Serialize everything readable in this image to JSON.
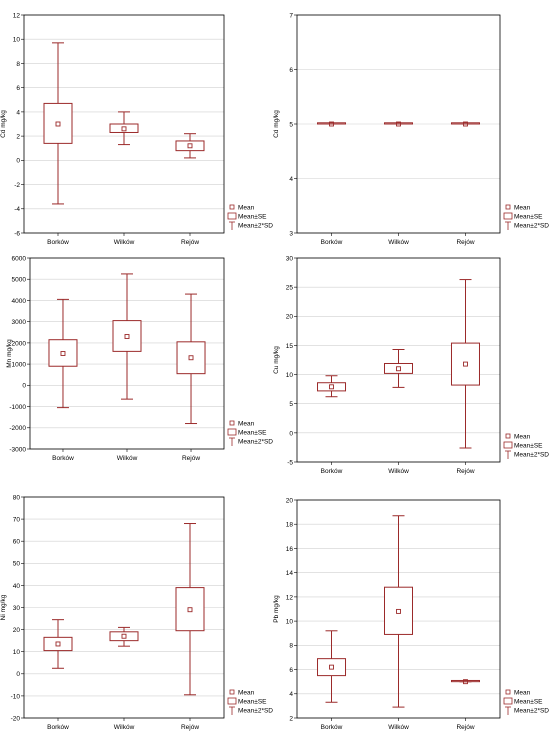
{
  "colors": {
    "box": "#9b2a2a",
    "grid": "#d0d0d0",
    "axis": "#000000"
  },
  "legend_labels": {
    "mean": "Mean",
    "se": "Mean±SE",
    "sd": "Mean±2*SD"
  },
  "chart_data": [
    {
      "type": "box",
      "ylabel": "Cd mg/kg",
      "categories": [
        "Borków",
        "Wilków",
        "Rejów"
      ],
      "ylim": [
        -6,
        12
      ],
      "yticks": [
        -6,
        -4,
        -2,
        0,
        2,
        4,
        6,
        8,
        10,
        12
      ],
      "grid": true,
      "legend": "bottom-right",
      "mean": [
        3.0,
        2.6,
        1.2
      ],
      "se": [
        [
          1.4,
          4.7
        ],
        [
          2.3,
          3.0
        ],
        [
          0.8,
          1.6
        ]
      ],
      "sd2": [
        [
          -3.6,
          9.7
        ],
        [
          1.3,
          4.0
        ],
        [
          0.2,
          2.2
        ]
      ]
    },
    {
      "type": "box",
      "ylabel": "Cd mg/kg",
      "categories": [
        "Borków",
        "Wilków",
        "Rejów"
      ],
      "ylim": [
        3,
        7
      ],
      "yticks": [
        3,
        4,
        5,
        6,
        7
      ],
      "grid": true,
      "legend": "bottom-right",
      "mean": [
        5.0,
        5.0,
        5.0
      ],
      "se": [
        [
          5.0,
          5.0
        ],
        [
          5.0,
          5.0
        ],
        [
          5.0,
          5.0
        ]
      ],
      "sd2": [
        [
          5.0,
          5.0
        ],
        [
          5.0,
          5.0
        ],
        [
          5.0,
          5.0
        ]
      ]
    },
    {
      "type": "box",
      "ylabel": "Mn mg/kg",
      "categories": [
        "Borków",
        "Wilków",
        "Rejów"
      ],
      "ylim": [
        -3000,
        6000
      ],
      "yticks": [
        -3000,
        -2000,
        -1000,
        0,
        1000,
        2000,
        3000,
        4000,
        5000,
        6000
      ],
      "grid": true,
      "legend": "bottom-right",
      "mean": [
        1500,
        2300,
        1300
      ],
      "se": [
        [
          900,
          2150
        ],
        [
          1600,
          3050
        ],
        [
          550,
          2050
        ]
      ],
      "sd2": [
        [
          -1050,
          4050
        ],
        [
          -650,
          5250
        ],
        [
          -1800,
          4300
        ]
      ]
    },
    {
      "type": "box",
      "ylabel": "Cu mg/kg",
      "categories": [
        "Borków",
        "Wilków",
        "Rejów"
      ],
      "ylim": [
        -5,
        30
      ],
      "yticks": [
        -5,
        0,
        5,
        10,
        15,
        20,
        25,
        30
      ],
      "grid": true,
      "legend": "bottom-right",
      "mean": [
        7.9,
        11.0,
        11.8
      ],
      "se": [
        [
          7.2,
          8.6
        ],
        [
          10.2,
          11.9
        ],
        [
          8.2,
          15.4
        ]
      ],
      "sd2": [
        [
          6.2,
          9.8
        ],
        [
          7.8,
          14.3
        ],
        [
          -2.6,
          26.3
        ]
      ]
    },
    {
      "type": "box",
      "ylabel": "Ni mg/kg",
      "categories": [
        "Borków",
        "Wilków",
        "Rejów"
      ],
      "ylim": [
        -20,
        80
      ],
      "yticks": [
        -20,
        -10,
        0,
        10,
        20,
        30,
        40,
        50,
        60,
        70,
        80
      ],
      "grid": true,
      "legend": "bottom-right",
      "mean": [
        13.5,
        17.0,
        29.0
      ],
      "se": [
        [
          10.5,
          16.5
        ],
        [
          15.0,
          19.0
        ],
        [
          19.5,
          39.0
        ]
      ],
      "sd2": [
        [
          2.5,
          24.5
        ],
        [
          12.5,
          21.0
        ],
        [
          -9.5,
          68.0
        ]
      ]
    },
    {
      "type": "box",
      "ylabel": "Pb mg/kg",
      "categories": [
        "Borków",
        "Wilków",
        "Rejów"
      ],
      "ylim": [
        2,
        20
      ],
      "yticks": [
        2,
        4,
        6,
        8,
        10,
        12,
        14,
        16,
        18,
        20
      ],
      "grid": true,
      "legend": "bottom-right",
      "mean": [
        6.2,
        10.8,
        5.0
      ],
      "se": [
        [
          5.5,
          6.9
        ],
        [
          8.9,
          12.8
        ],
        [
          5.0,
          5.0
        ]
      ],
      "sd2": [
        [
          3.3,
          9.2
        ],
        [
          2.9,
          18.7
        ],
        [
          5.0,
          5.0
        ]
      ]
    }
  ]
}
